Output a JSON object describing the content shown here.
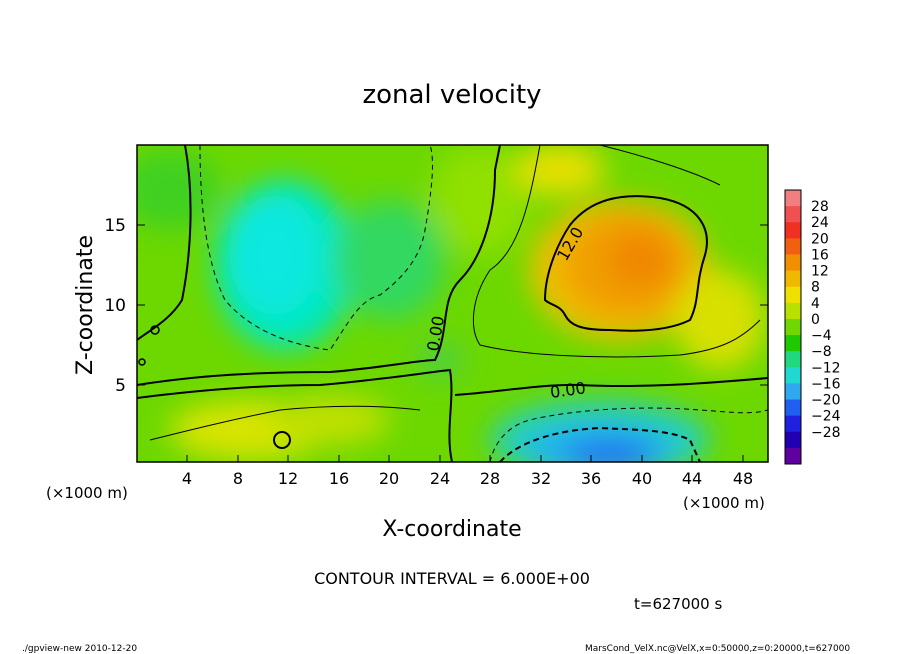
{
  "chart_data": {
    "type": "heatmap",
    "title": "zonal velocity",
    "xlabel": "X-coordinate",
    "ylabel": "Z-coordinate",
    "x_unit": "(×1000 m)",
    "y_unit": "(×1000 m)",
    "xlim": [
      0,
      50
    ],
    "ylim": [
      0,
      20
    ],
    "x_ticks": [
      "4",
      "8",
      "12",
      "16",
      "20",
      "24",
      "28",
      "32",
      "36",
      "40",
      "44",
      "48"
    ],
    "y_ticks": [
      "5",
      "10",
      "15"
    ],
    "colorbar": {
      "labels": [
        "28",
        "24",
        "20",
        "16",
        "12",
        "8",
        "4",
        "0",
        "−4",
        "−8",
        "−12",
        "−16",
        "−20",
        "−24",
        "−28"
      ],
      "colors": [
        "#f08080",
        "#f05050",
        "#f03020",
        "#f06010",
        "#f09000",
        "#f0b800",
        "#f0e000",
        "#b8e000",
        "#70d800",
        "#20c800",
        "#20d880",
        "#20d8d0",
        "#30a8f0",
        "#2060f0",
        "#2020e0",
        "#2000b0",
        "#6000a0"
      ]
    },
    "contour_labels": [
      "12.0",
      "0.00",
      "0.00"
    ],
    "contour_interval_text": "CONTOUR INTERVAL = 6.000E+00",
    "time_text": "t=627000 s",
    "footer_left": "./gpview-new  2010-12-20",
    "footer_right": "MarsCond_VelX.nc@VelX,x=0:50000,z=0:20000,t=627000"
  }
}
